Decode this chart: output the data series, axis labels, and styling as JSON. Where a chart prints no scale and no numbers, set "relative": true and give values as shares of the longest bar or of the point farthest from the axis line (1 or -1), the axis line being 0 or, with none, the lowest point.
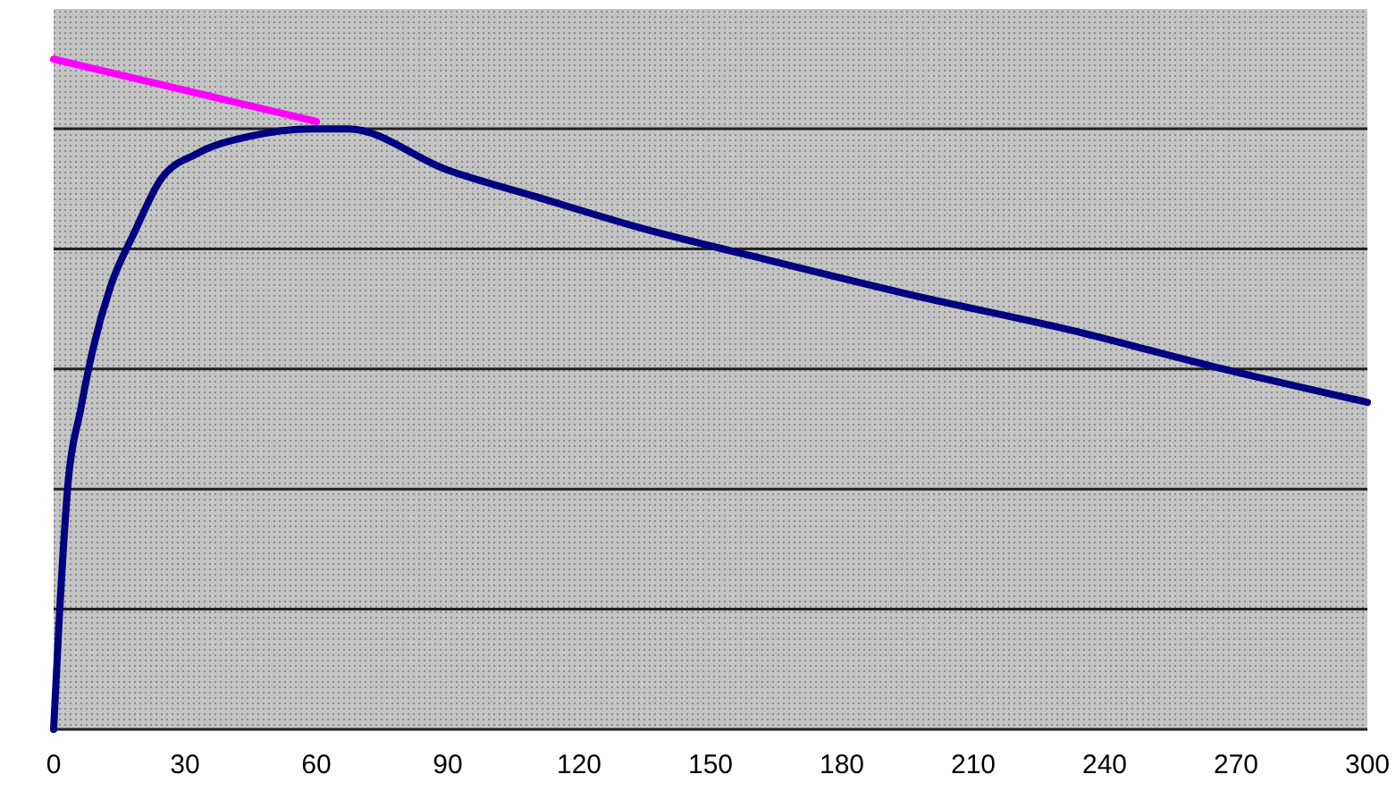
{
  "chart_data": {
    "type": "line",
    "relative": true,
    "xlim": [
      0,
      300
    ],
    "xticks": [
      0,
      30,
      60,
      90,
      120,
      150,
      180,
      210,
      240,
      270,
      300
    ],
    "grid": "y",
    "marker": "none",
    "line_style": "solid",
    "series": [
      {
        "color": "#ff00ff",
        "x": [
          0,
          60
        ],
        "values": [
          1,
          0.907
        ]
      },
      {
        "color": "#000080",
        "x": [
          0,
          1.2,
          3.3,
          6.1,
          9,
          13,
          18.4,
          24.5,
          32.7,
          44.9,
          59.2,
          67.3,
          89.8,
          110,
          134.7,
          159,
          196,
          232.7,
          265,
          300
        ],
        "values": [
          0,
          0.155,
          0.368,
          0.475,
          0.568,
          0.661,
          0.741,
          0.821,
          0.859,
          0.885,
          0.896,
          0.896,
          0.835,
          0.795,
          0.747,
          0.707,
          0.648,
          0.595,
          0.541,
          0.488
        ]
      }
    ]
  }
}
